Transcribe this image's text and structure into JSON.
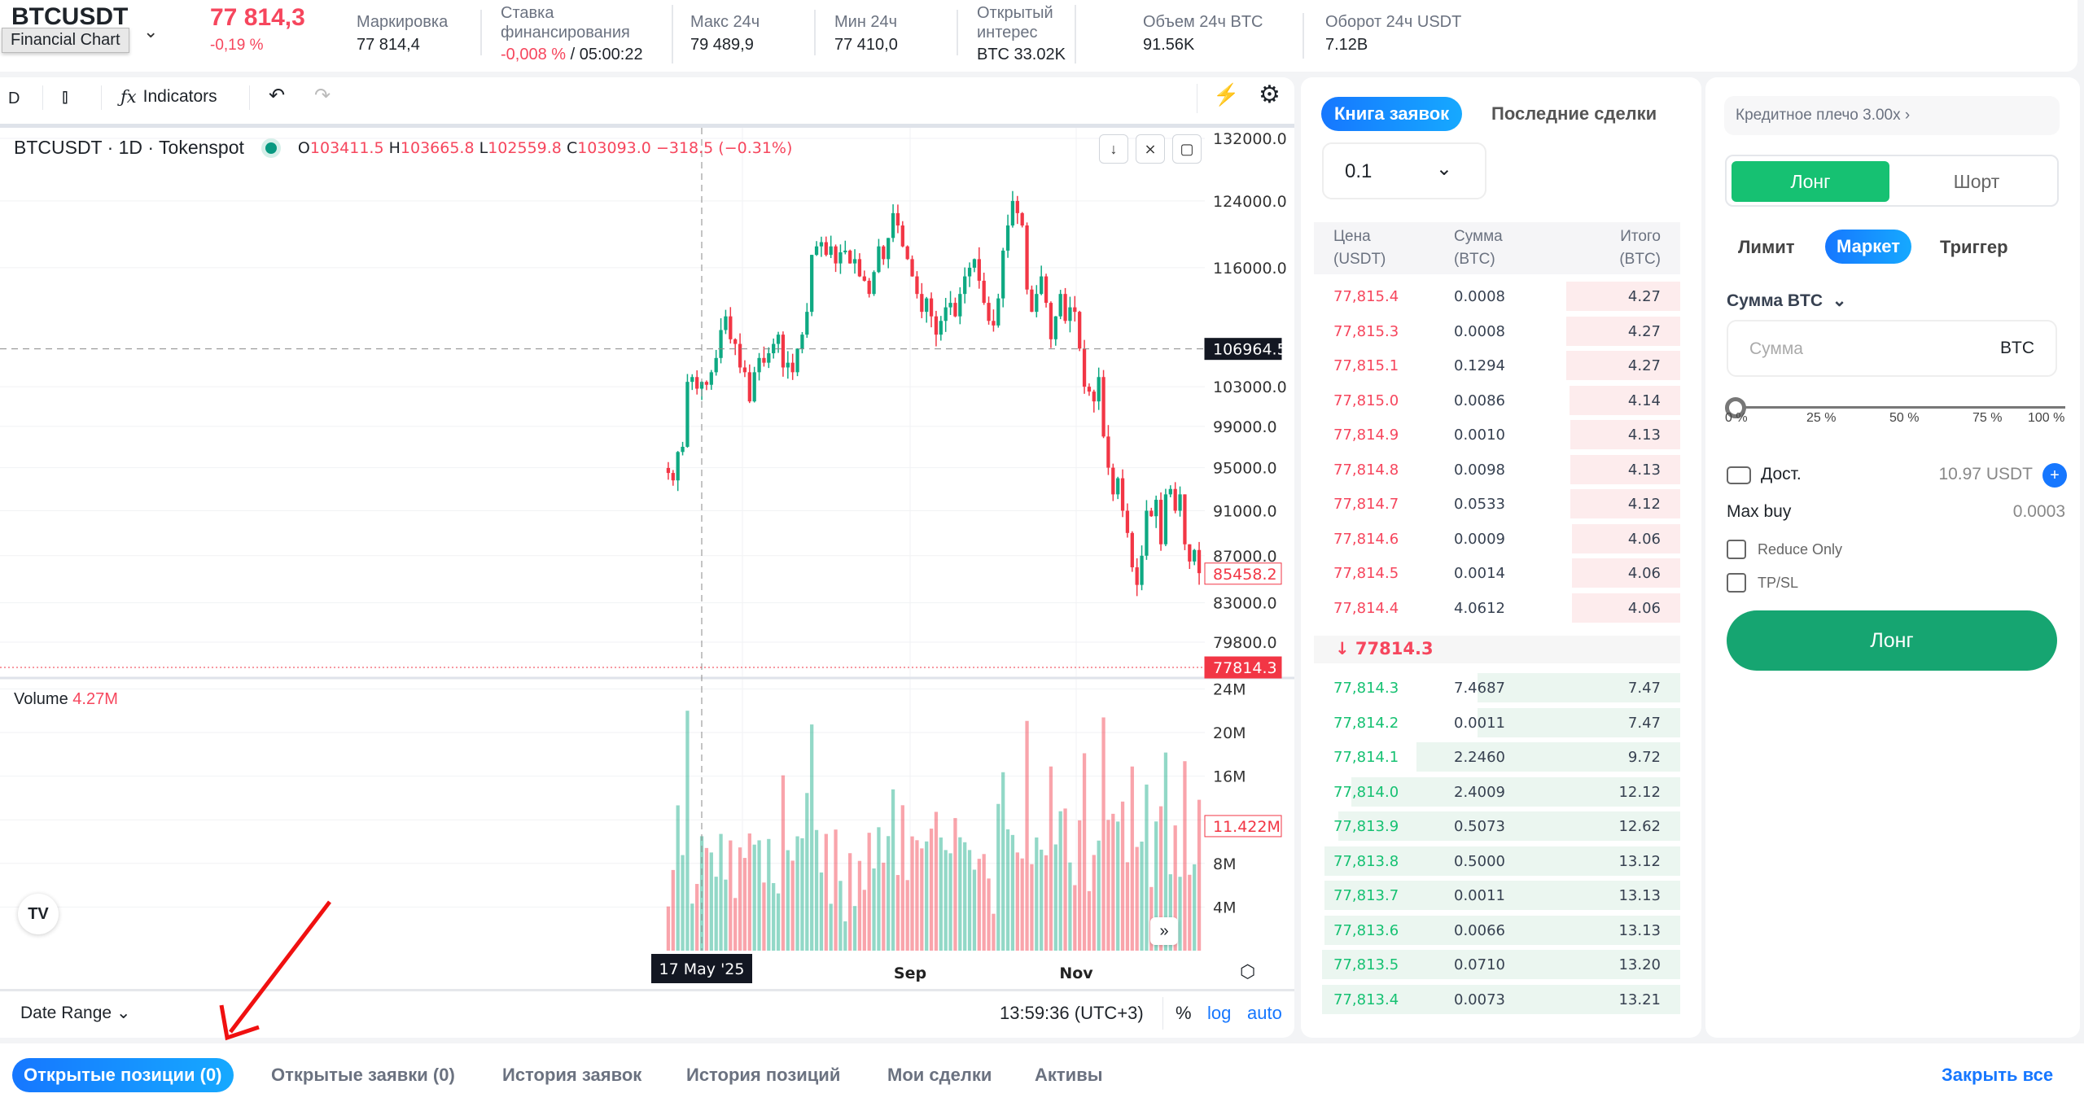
{
  "header": {
    "symbol": "BTCUSDT",
    "tooltip": "Financial Chart",
    "price": "77 814,3",
    "change": "-0,19 %",
    "mark_label": "Маркировка",
    "mark_value": "77 814,4",
    "funding_label": "Ставка финансирования",
    "funding_rate": "-0,008 %",
    "funding_timer": "/ 05:00:22",
    "high_label": "Макс 24ч",
    "high_value": "79 489,9",
    "low_label": "Мин 24ч",
    "low_value": "77 410,0",
    "oi_label": "Открытый интерес",
    "oi_value": "BTC 33.02K",
    "vol_label": "Объем 24ч BTC",
    "vol_value": "91.56K",
    "turnover_label": "Оборот 24ч USDT",
    "turnover_value": "7.12B"
  },
  "toolbar": {
    "interval": "D",
    "indicators": "Indicators"
  },
  "chart_legend": {
    "title": "BTCUSDT · 1D · Tokenspot",
    "o_label": "O",
    "o": "103411.5",
    "h_label": "H",
    "h": "103665.8",
    "l_label": "L",
    "l": "102559.8",
    "c_label": "C",
    "c": "103093.0",
    "change": "−318.5 (−0.31%)",
    "volume_label": "Volume",
    "volume": "4.27M"
  },
  "chart_data": {
    "type": "candlestick",
    "scale": "log",
    "ylim": [
      77000,
      134000
    ],
    "price_ticks": [
      "132000.0",
      "124000.0",
      "116000.0",
      "103000.0",
      "99000.0",
      "95000.0",
      "91000.0",
      "87000.0",
      "83000.0",
      "79800.0"
    ],
    "crosshair_price": "106964.5",
    "last_bar_label": "85458.2",
    "current_price": "77814.3",
    "volume_ticks": [
      "24M",
      "20M",
      "16M",
      "8M",
      "4M"
    ],
    "volume_last": "11.422M",
    "time_ticks": [
      "Sep",
      "Nov"
    ],
    "crosshair_date": "17 May '25",
    "closes": [
      94500,
      93800,
      96500,
      97000,
      103500,
      104000,
      102800,
      103500,
      103200,
      104500,
      106000,
      109000,
      110500,
      108000,
      107500,
      105000,
      104500,
      101500,
      104500,
      106000,
      105500,
      106500,
      107500,
      108500,
      105000,
      105500,
      104500,
      107000,
      108500,
      111000,
      117500,
      118500,
      119000,
      117500,
      118500,
      116500,
      117800,
      118000,
      116500,
      117000,
      115000,
      114500,
      113000,
      115500,
      118500,
      117000,
      119500,
      122500,
      121000,
      118500,
      117000,
      115000,
      113000,
      111000,
      112500,
      110500,
      108500,
      110000,
      111500,
      112000,
      110500,
      113000,
      115000,
      116000,
      117000,
      114500,
      112000,
      110000,
      109500,
      112500,
      118000,
      121000,
      124000,
      122500,
      121000,
      113500,
      111000,
      113000,
      115000,
      112000,
      108000,
      110500,
      113000,
      110000,
      111500,
      111000,
      107000,
      103000,
      102500,
      101500,
      104000,
      98000,
      95000,
      92500,
      94000,
      91000,
      89000,
      86000,
      84500,
      87000,
      91000,
      90500,
      92000,
      88000,
      92500,
      93000,
      91000,
      92500,
      88000,
      86500,
      87500,
      85500
    ]
  },
  "bottom_bar": {
    "date_range": "Date Range",
    "clock": "13:59:36 (UTC+3)",
    "percent": "%",
    "log": "log",
    "auto": "auto"
  },
  "bottom_tabs": [
    "Открытые позиции (0)",
    "Открытые заявки (0)",
    "История заявок",
    "История позиций",
    "Мои сделки",
    "Активы"
  ],
  "close_all": "Закрыть все",
  "orderbook": {
    "tab_book": "Книга заявок",
    "tab_trades": "Последние сделки",
    "step": "0.1",
    "headers": {
      "price": "Цена",
      "price_unit": "(USDT)",
      "amount": "Сумма",
      "amount_unit": "(BTC)",
      "total": "Итого",
      "total_unit": "(BTC)"
    },
    "asks": [
      [
        "77,815.4",
        "0.0008",
        "4.27"
      ],
      [
        "77,815.3",
        "0.0008",
        "4.27"
      ],
      [
        "77,815.1",
        "0.1294",
        "4.27"
      ],
      [
        "77,815.0",
        "0.0086",
        "4.14"
      ],
      [
        "77,814.9",
        "0.0010",
        "4.13"
      ],
      [
        "77,814.8",
        "0.0098",
        "4.13"
      ],
      [
        "77,814.7",
        "0.0533",
        "4.12"
      ],
      [
        "77,814.6",
        "0.0009",
        "4.06"
      ],
      [
        "77,814.5",
        "0.0014",
        "4.06"
      ],
      [
        "77,814.4",
        "4.0612",
        "4.06"
      ]
    ],
    "mid": "77814.3",
    "bids": [
      [
        "77,814.3",
        "7.4687",
        "7.47"
      ],
      [
        "77,814.2",
        "0.0011",
        "7.47"
      ],
      [
        "77,814.1",
        "2.2460",
        "9.72"
      ],
      [
        "77,814.0",
        "2.4009",
        "12.12"
      ],
      [
        "77,813.9",
        "0.5073",
        "12.62"
      ],
      [
        "77,813.8",
        "0.5000",
        "13.12"
      ],
      [
        "77,813.7",
        "0.0011",
        "13.13"
      ],
      [
        "77,813.6",
        "0.0066",
        "13.13"
      ],
      [
        "77,813.5",
        "0.0710",
        "13.20"
      ],
      [
        "77,813.4",
        "0.0073",
        "13.21"
      ]
    ]
  },
  "order_form": {
    "leverage": "Кредитное плечо 3.00x",
    "long": "Лонг",
    "short": "Шорт",
    "types": [
      "Лимит",
      "Маркет",
      "Триггер"
    ],
    "amount_label": "Сумма BTC",
    "amount_placeholder": "Сумма",
    "amount_unit": "BTC",
    "slider_value": 0,
    "slider_marks": [
      "0 %",
      "25 %",
      "50 %",
      "75 %",
      "100 %"
    ],
    "available_label": "Дост.",
    "available_value": "10.97 USDT",
    "max_buy_label": "Max buy",
    "max_buy_value": "0.0003",
    "reduce_only": "Reduce Only",
    "tpsl": "TP/SL",
    "submit": "Лонг"
  },
  "colors": {
    "up": "#0ea982",
    "down": "#f23645",
    "accent": "#1677ff",
    "long": "#16a571"
  }
}
